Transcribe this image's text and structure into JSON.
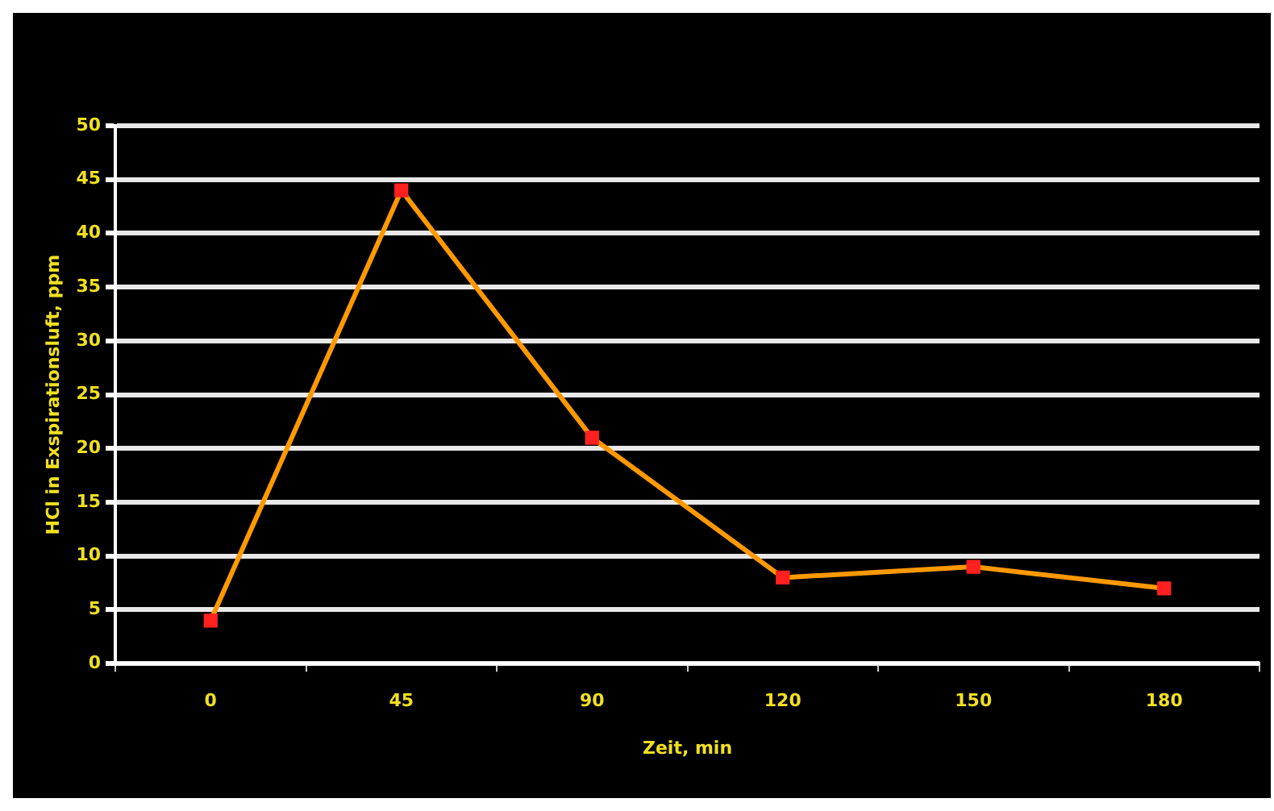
{
  "chart_data": {
    "type": "line",
    "xlabel": "Zeit, min",
    "ylabel": "HCl in Exspirationsluft, ppm",
    "categories": [
      "0",
      "45",
      "90",
      "120",
      "150",
      "180"
    ],
    "series": [
      {
        "color": "#ff9900",
        "values": [
          4,
          44,
          21,
          8,
          9,
          7
        ]
      }
    ],
    "ylim": [
      0,
      50
    ],
    "yticks": [
      0,
      5,
      10,
      15,
      20,
      25,
      30,
      35,
      40,
      45,
      50
    ],
    "grid": "y",
    "marker": "square",
    "legend": false
  }
}
